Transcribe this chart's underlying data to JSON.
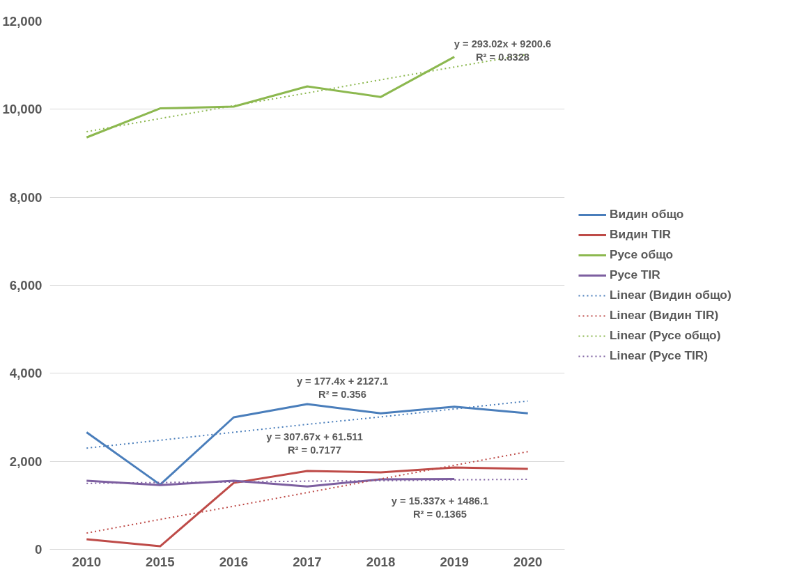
{
  "chart_data": {
    "type": "line",
    "categories": [
      "2010",
      "2015",
      "2016",
      "2017",
      "2018",
      "2019",
      "2020"
    ],
    "ylim": [
      0,
      12000
    ],
    "yticks": [
      {
        "value": 0,
        "label": "0"
      },
      {
        "value": 2000,
        "label": "2,000"
      },
      {
        "value": 4000,
        "label": "4,000"
      },
      {
        "value": 6000,
        "label": "6,000"
      },
      {
        "value": 8000,
        "label": "8,000"
      },
      {
        "value": 10000,
        "label": "10,000"
      },
      {
        "value": 12000,
        "label": "12,000"
      }
    ],
    "grid": "y",
    "legend": "right",
    "marker": "none",
    "series": [
      {
        "name": "Видин общо",
        "color": "#4a7ebb",
        "line_style": "solid",
        "values": [
          2660,
          1470,
          3000,
          3300,
          3090,
          3240,
          3090
        ]
      },
      {
        "name": "Видин TIR",
        "color": "#be4b48",
        "line_style": "solid",
        "values": [
          230,
          70,
          1510,
          1780,
          1750,
          1860,
          1830
        ]
      },
      {
        "name": "Русе общо",
        "color": "#8cb84f",
        "line_style": "solid",
        "values": [
          9360,
          10020,
          10060,
          10520,
          10280,
          11190,
          null
        ]
      },
      {
        "name": "Русе TIR",
        "color": "#7d5fa0",
        "line_style": "solid",
        "values": [
          1560,
          1460,
          1560,
          1430,
          1590,
          1600,
          null
        ]
      },
      {
        "name": "Linear (Видин общо)",
        "color": "#4a7ebb",
        "line_style": "dotted",
        "values": [
          2300,
          2480,
          2660,
          2840,
          3010,
          3190,
          3370
        ]
      },
      {
        "name": "Linear (Видин TIR)",
        "color": "#be4b48",
        "line_style": "dotted",
        "values": [
          370,
          680,
          980,
          1290,
          1600,
          1910,
          2220
        ]
      },
      {
        "name": "Linear (Русе общо)",
        "color": "#8cb84f",
        "line_style": "dotted",
        "values": [
          9490,
          9790,
          10080,
          10370,
          10670,
          10960,
          11250
        ]
      },
      {
        "name": "Linear (Русе TIR)",
        "color": "#7d5fa0",
        "line_style": "dotted",
        "values": [
          1500,
          1520,
          1530,
          1550,
          1560,
          1580,
          1590
        ]
      }
    ],
    "annotations": [
      "y = 293.02x + 9200.6\nR² = 0.8328",
      "y = 177.4x + 2127.1\nR² = 0.356",
      "y = 307.67x + 61.511\nR² = 0.7177",
      "y = 15.337x + 1486.1\nR² = 0.1365"
    ]
  }
}
